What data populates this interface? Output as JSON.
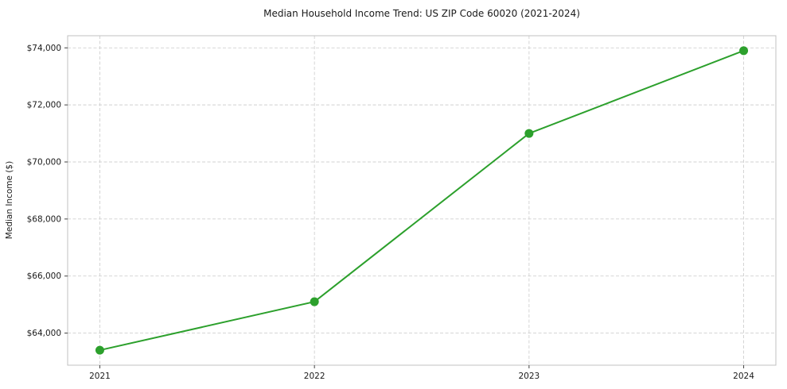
{
  "chart_data": {
    "type": "line",
    "title": "Median Household Income Trend: US ZIP Code 60020 (2021-2024)",
    "xlabel": "",
    "ylabel": "Median Income ($)",
    "x": [
      2021,
      2022,
      2023,
      2024
    ],
    "series": [
      {
        "name": "Median Income",
        "values": [
          63400,
          65100,
          71000,
          73900
        ]
      }
    ],
    "xticks": [
      2021,
      2022,
      2023,
      2024
    ],
    "xtick_labels": [
      "2021",
      "2022",
      "2023",
      "2024"
    ],
    "yticks": [
      64000,
      66000,
      68000,
      70000,
      72000,
      74000
    ],
    "ytick_labels": [
      "$64,000",
      "$66,000",
      "$68,000",
      "$70,000",
      "$72,000",
      "$74,000"
    ],
    "xlim": [
      2020.85,
      2024.15
    ],
    "ylim": [
      62875,
      74425
    ],
    "grid": true,
    "grid_style": "dashed",
    "legend": "none",
    "colors": {
      "line": "#2ca02c",
      "marker": "#2ca02c",
      "gridline": "#d0d0d0",
      "spine": "#c0c0c0",
      "tick": "#444444",
      "text": "#1a1a1a",
      "background": "#ffffff"
    }
  }
}
